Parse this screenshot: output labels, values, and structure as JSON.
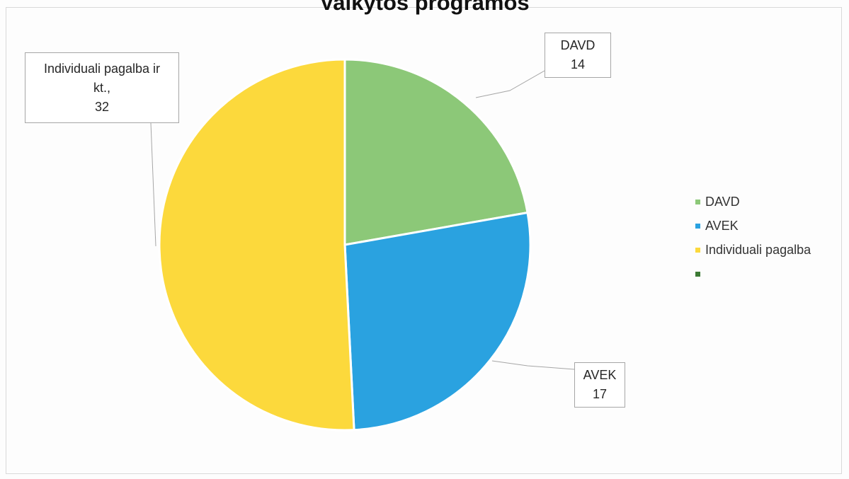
{
  "chart_data": {
    "type": "pie",
    "title": "Vaikytos programos",
    "categories": [
      "DAVD",
      "AVEK",
      "Individuali pagalba",
      ""
    ],
    "values": [
      14,
      17,
      32,
      0
    ],
    "colors": [
      "#8cc878",
      "#2aa2e0",
      "#fcd93c",
      "#3c7a34"
    ],
    "data_labels": [
      {
        "lines": [
          "DAVD",
          "14"
        ]
      },
      {
        "lines": [
          "AVEK",
          "17"
        ]
      },
      {
        "lines": [
          "Individuali pagalba ir",
          "kt.,",
          "32"
        ]
      }
    ],
    "legend_position": "right"
  }
}
